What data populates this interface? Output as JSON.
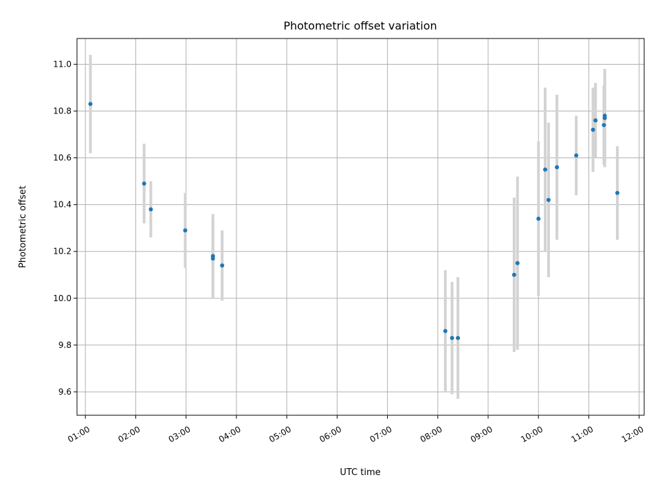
{
  "chart_data": {
    "type": "scatter",
    "title": "Photometric offset variation",
    "xlabel": "UTC time",
    "ylabel": "Photometric offset",
    "xlim": [
      "00:50",
      "12:06"
    ],
    "ylim": [
      9.5,
      11.11
    ],
    "xticks": [
      "01:00",
      "02:00",
      "03:00",
      "04:00",
      "05:00",
      "06:00",
      "07:00",
      "08:00",
      "09:00",
      "10:00",
      "11:00",
      "12:00"
    ],
    "yticks": [
      "9.6",
      "9.8",
      "10.0",
      "10.2",
      "10.4",
      "10.6",
      "10.8",
      "11.0"
    ],
    "grid": true,
    "marker_color": "#1f77b4",
    "errorbar_color": "#d3d3d3",
    "points": [
      {
        "x": "01:06",
        "y": 10.83,
        "err": 0.21
      },
      {
        "x": "02:10",
        "y": 10.49,
        "err": 0.17
      },
      {
        "x": "02:18",
        "y": 10.38,
        "err": 0.12
      },
      {
        "x": "02:59",
        "y": 10.29,
        "err": 0.16
      },
      {
        "x": "03:32",
        "y": 10.18,
        "err": 0.18
      },
      {
        "x": "03:32",
        "y": 10.17,
        "err": 0.17
      },
      {
        "x": "03:43",
        "y": 10.14,
        "err": 0.15
      },
      {
        "x": "08:09",
        "y": 9.86,
        "err": 0.26
      },
      {
        "x": "08:17",
        "y": 9.83,
        "err": 0.24
      },
      {
        "x": "08:24",
        "y": 9.83,
        "err": 0.26
      },
      {
        "x": "09:31",
        "y": 10.1,
        "err": 0.33
      },
      {
        "x": "09:35",
        "y": 10.15,
        "err": 0.37
      },
      {
        "x": "10:00",
        "y": 10.34,
        "err": 0.33
      },
      {
        "x": "10:08",
        "y": 10.55,
        "err": 0.35
      },
      {
        "x": "10:12",
        "y": 10.42,
        "err": 0.33
      },
      {
        "x": "10:22",
        "y": 10.56,
        "err": 0.31
      },
      {
        "x": "10:45",
        "y": 10.61,
        "err": 0.17
      },
      {
        "x": "11:05",
        "y": 10.72,
        "err": 0.18
      },
      {
        "x": "11:08",
        "y": 10.76,
        "err": 0.16
      },
      {
        "x": "11:18",
        "y": 10.74,
        "err": 0.17
      },
      {
        "x": "11:19",
        "y": 10.78,
        "err": 0.2
      },
      {
        "x": "11:19",
        "y": 10.77,
        "err": 0.21
      },
      {
        "x": "11:34",
        "y": 10.45,
        "err": 0.2
      }
    ]
  }
}
